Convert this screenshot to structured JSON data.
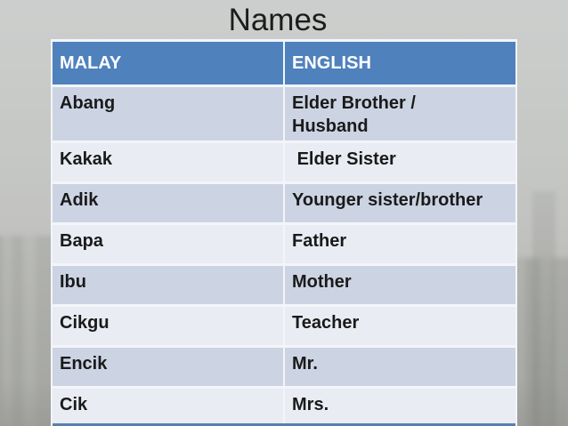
{
  "slide": {
    "title": "Names",
    "table": {
      "headers": {
        "malay": "MALAY",
        "english": "ENGLISH"
      },
      "rows": [
        {
          "malay": "Abang",
          "english": "Elder Brother /\nHusband"
        },
        {
          "malay": "Kakak",
          "english": " Elder Sister"
        },
        {
          "malay": "Adik",
          "english": "Younger sister/brother"
        },
        {
          "malay": "Bapa",
          "english": "Father"
        },
        {
          "malay": "Ibu",
          "english": "Mother"
        },
        {
          "malay": "Cikgu",
          "english": "Teacher"
        },
        {
          "malay": "Encik",
          "english": "Mr."
        },
        {
          "malay": "Cik",
          "english": "Mrs."
        }
      ]
    },
    "colors": {
      "header_bg": "#4f81bd",
      "band_dark": "#ccd4e3",
      "band_light": "#e9ecf3",
      "border": "#f3f5f9",
      "header_text": "#ffffff",
      "body_text": "#1a1a1a",
      "title_text": "#1c1c1c"
    }
  }
}
